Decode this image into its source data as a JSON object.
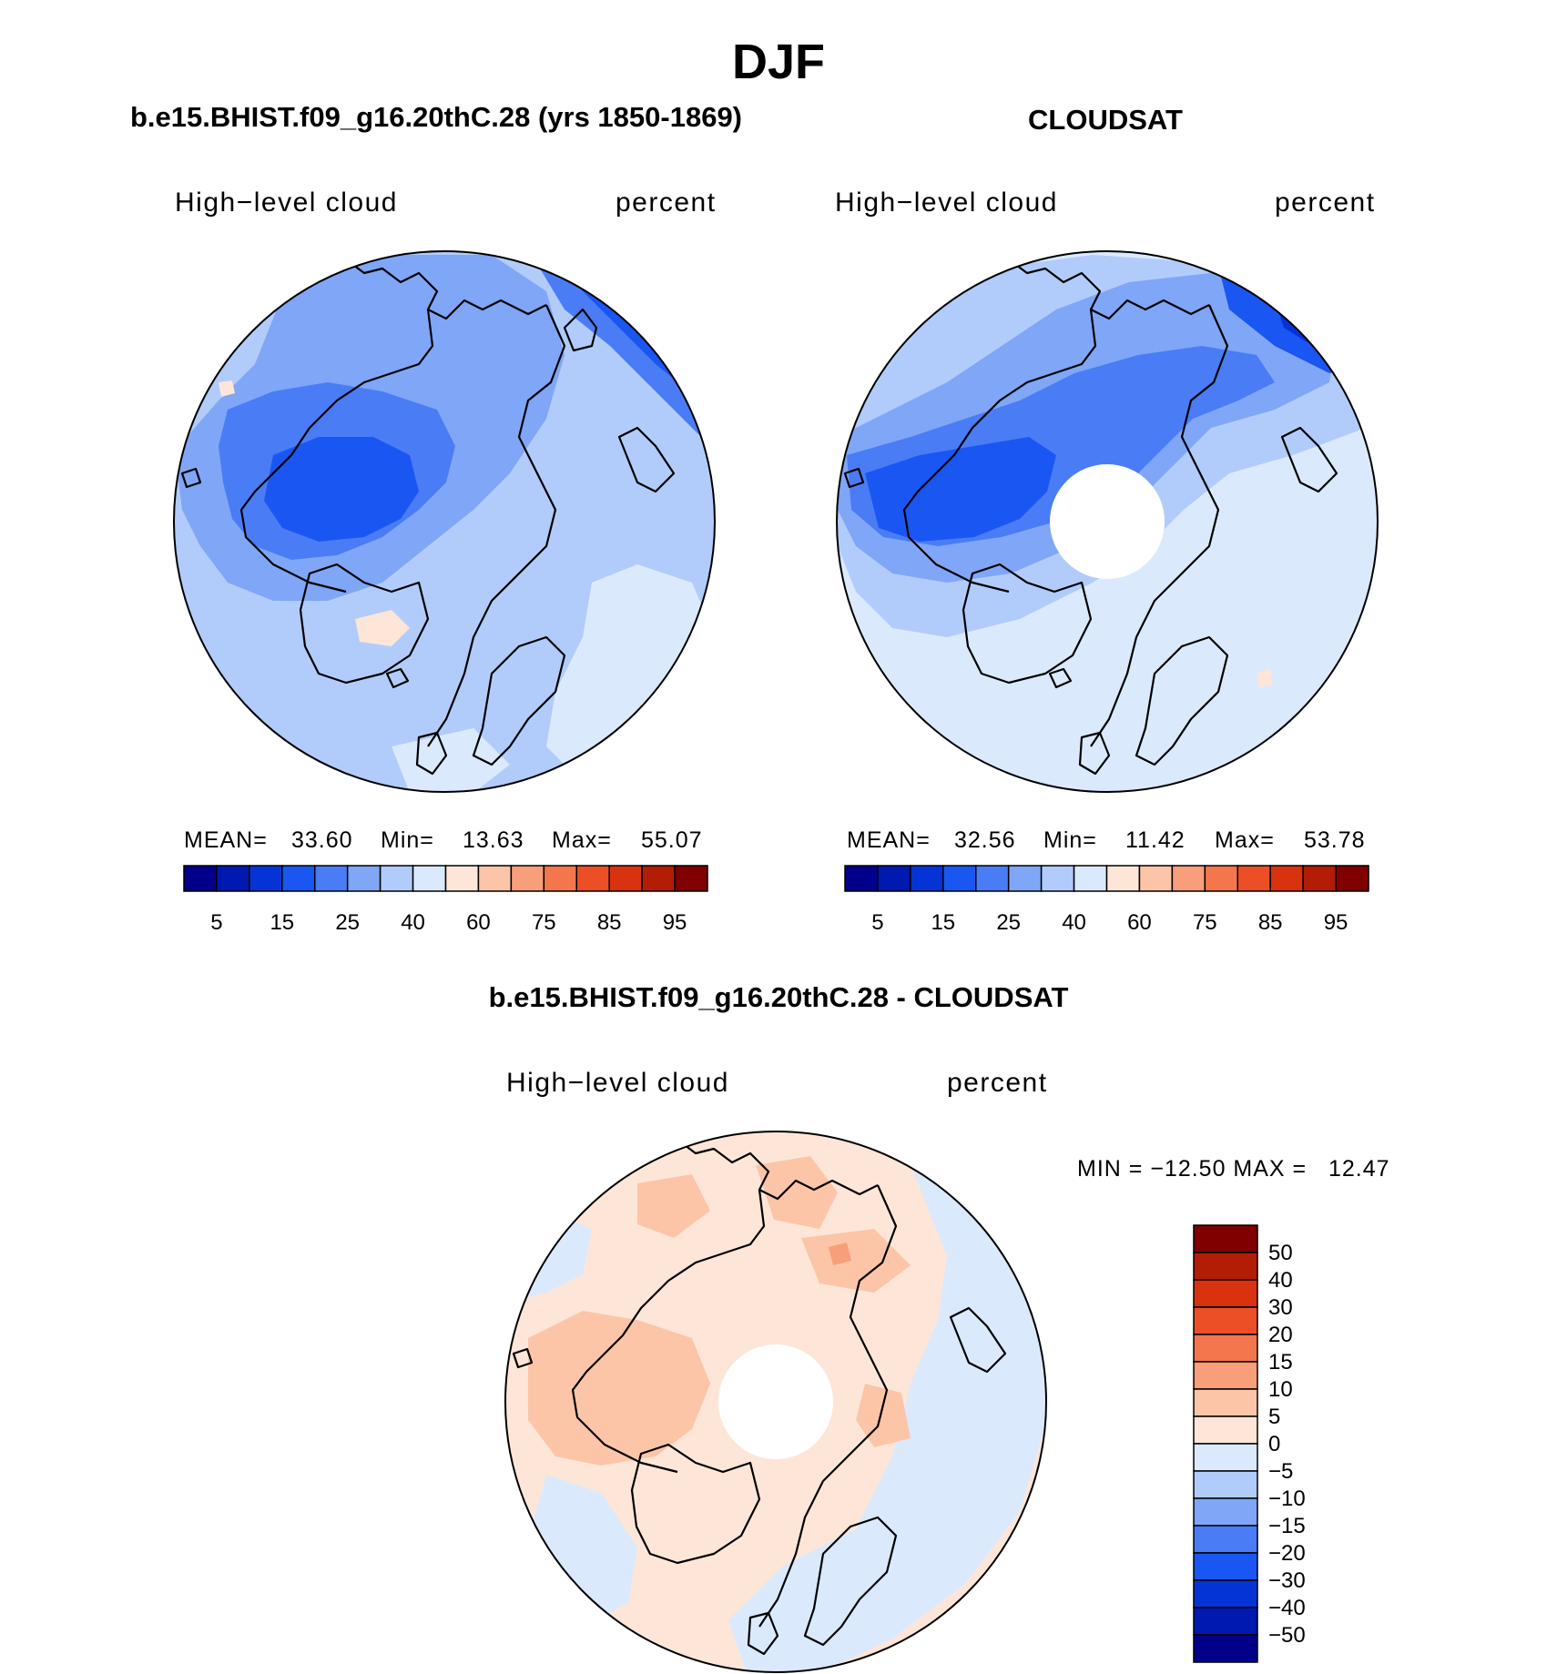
{
  "figure": {
    "title": "DJF",
    "colors": {
      "seq": [
        "#02008a",
        "#0019b0",
        "#0534d6",
        "#1a56f2",
        "#4a7cf5",
        "#7fa6f7",
        "#b1ccfa",
        "#dbe9fd",
        "#fde6d8",
        "#fcc5a8",
        "#f89e7b",
        "#f3764d",
        "#ec4f26",
        "#d8320f",
        "#b31d05",
        "#800000"
      ],
      "diff": [
        "#800000",
        "#b31d05",
        "#d8320f",
        "#ec4f26",
        "#f3764d",
        "#f89e7b",
        "#fcc5a8",
        "#fde6d8",
        "#dbe9fd",
        "#b1ccfa",
        "#7fa6f7",
        "#4a7cf5",
        "#1a56f2",
        "#0534d6",
        "#0019b0",
        "#02008a"
      ]
    }
  },
  "chart_data": [
    {
      "type": "heatmap",
      "projection": "north polar stereographic",
      "title": "b.e15.BHIST.f09_g16.20thC.28 (yrs 1850-1869)",
      "left_label": "High−level cloud",
      "right_label": "percent",
      "stats": {
        "mean_label": "MEAN=",
        "mean": "33.60",
        "min_label": "Min=",
        "min": "13.63",
        "max_label": "Max=",
        "max": "55.07"
      },
      "colorbar": {
        "orientation": "horizontal",
        "ticks": [
          "5",
          "15",
          "25",
          "40",
          "60",
          "75",
          "85",
          "95"
        ]
      }
    },
    {
      "type": "heatmap",
      "projection": "north polar stereographic",
      "title": "CLOUDSAT",
      "left_label": "High−level cloud",
      "right_label": "percent",
      "stats": {
        "mean_label": "MEAN=",
        "mean": "32.56",
        "min_label": "Min=",
        "min": "11.42",
        "max_label": "Max=",
        "max": "53.78"
      },
      "colorbar": {
        "orientation": "horizontal",
        "ticks": [
          "5",
          "15",
          "25",
          "40",
          "60",
          "75",
          "85",
          "95"
        ]
      }
    },
    {
      "type": "heatmap",
      "projection": "north polar stereographic",
      "title": "b.e15.BHIST.f09_g16.20thC.28 - CLOUDSAT",
      "left_label": "High−level cloud",
      "right_label": "percent",
      "minmax": "MIN = −12.50 MAX =   12.47",
      "colorbar": {
        "orientation": "vertical",
        "ticks": [
          "50",
          "40",
          "30",
          "20",
          "15",
          "10",
          "5",
          "0",
          "−5",
          "−10",
          "−15",
          "−20",
          "−30",
          "−40",
          "−50"
        ]
      }
    }
  ]
}
